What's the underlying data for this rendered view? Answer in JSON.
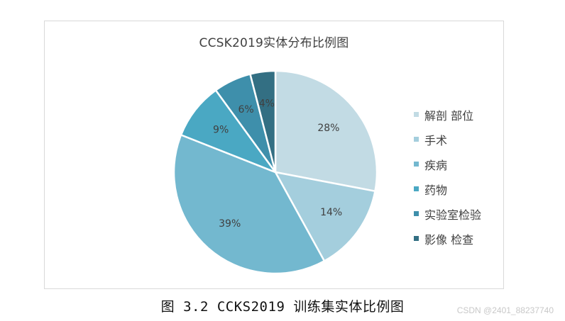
{
  "chart_data": {
    "type": "pie",
    "title": "CCSK2019实体分布比例图",
    "categories": [
      "解剖 部位",
      "手术",
      "疾病",
      "药物",
      "实验室检验",
      "影像 检查"
    ],
    "values": [
      28,
      14,
      39,
      9,
      6,
      4
    ],
    "data_labels": [
      "28%",
      "14%",
      "39%",
      "9%",
      "6%",
      "4%"
    ],
    "colors": [
      "#c2dbe4",
      "#a4cedd",
      "#73b8cf",
      "#4aa8c3",
      "#3e8fab",
      "#336f83"
    ],
    "legend_position": "right"
  },
  "caption": "图 3.2 CCKS2019 训练集实体比例图",
  "watermark": "CSDN @2401_88237740"
}
